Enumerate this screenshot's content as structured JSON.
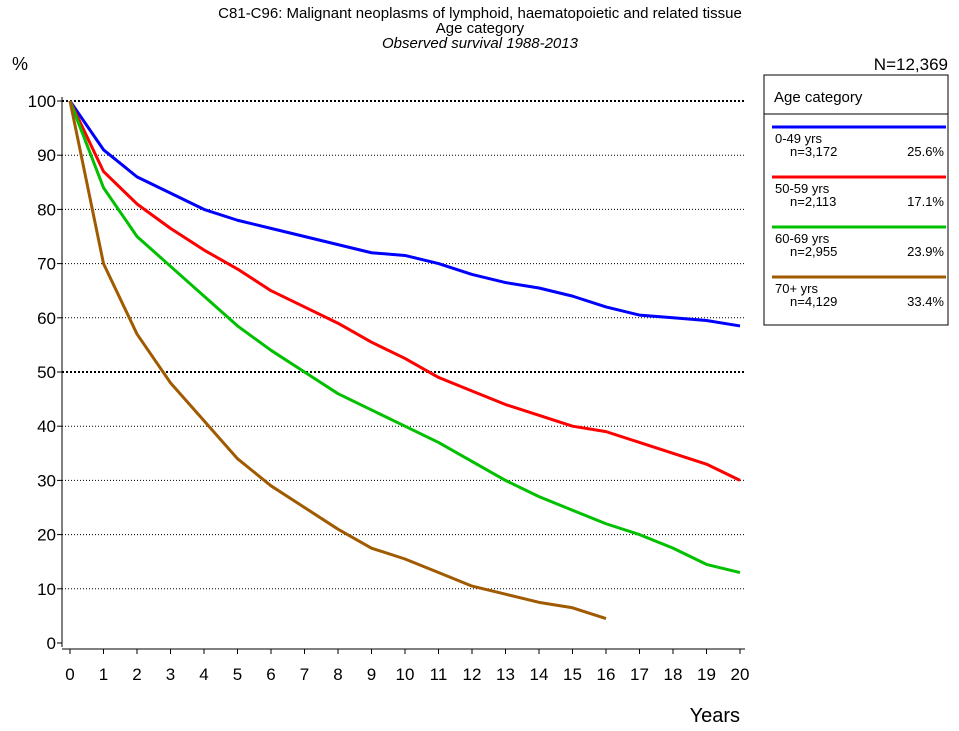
{
  "chart_data": {
    "type": "line",
    "title": "C81-C96: Malignant neoplasms of lymphoid, haematopoietic and related tissue",
    "subtitle": "Age category",
    "subtitle2": "Observed survival 1988-2013",
    "ylabel": "%",
    "xlabel": "Years",
    "total": "N=12,369",
    "legend_title": "Age category",
    "x": [
      0,
      1,
      2,
      3,
      4,
      5,
      6,
      7,
      8,
      9,
      10,
      11,
      12,
      13,
      14,
      15,
      16,
      17,
      18,
      19,
      20
    ],
    "series": [
      {
        "name": "0-49 yrs",
        "n": "n=3,172",
        "share": "25.6%",
        "color": "#0000ff",
        "values": [
          100,
          91,
          86,
          83,
          80,
          78,
          76.5,
          75,
          73.5,
          72,
          71.5,
          70,
          68,
          66.5,
          65.5,
          64,
          62,
          60.5,
          60,
          59.5,
          58.5
        ]
      },
      {
        "name": "50-59 yrs",
        "n": "n=2,113",
        "share": "17.1%",
        "color": "#ff0000",
        "values": [
          100,
          87,
          81,
          76.5,
          72.5,
          69,
          65,
          62,
          59,
          55.5,
          52.5,
          49,
          46.5,
          44,
          42,
          40,
          39,
          37,
          35,
          33,
          30
        ]
      },
      {
        "name": "60-69 yrs",
        "n": "n=2,955",
        "share": "23.9%",
        "color": "#00c000",
        "values": [
          100,
          84,
          75,
          69.5,
          64,
          58.5,
          54,
          50,
          46,
          43,
          40,
          37,
          33.5,
          30,
          27,
          24.5,
          22,
          20,
          17.5,
          14.5,
          13
        ]
      },
      {
        "name": "70+ yrs",
        "n": "n=4,129",
        "share": "33.4%",
        "color": "#a05a00",
        "values": [
          100,
          70,
          57,
          48,
          41,
          34,
          29,
          25,
          21,
          17.5,
          15.5,
          13,
          10.5,
          9,
          7.5,
          6.5,
          4.5,
          null,
          null,
          null,
          null
        ]
      }
    ],
    "xlim": [
      0,
      20
    ],
    "xticks": [
      0,
      1,
      2,
      3,
      4,
      5,
      6,
      7,
      8,
      9,
      10,
      11,
      12,
      13,
      14,
      15,
      16,
      17,
      18,
      19,
      20
    ],
    "ylim": [
      0,
      100
    ],
    "yticks": [
      0,
      10,
      20,
      30,
      40,
      50,
      60,
      70,
      80,
      90,
      100
    ],
    "grid": true
  }
}
